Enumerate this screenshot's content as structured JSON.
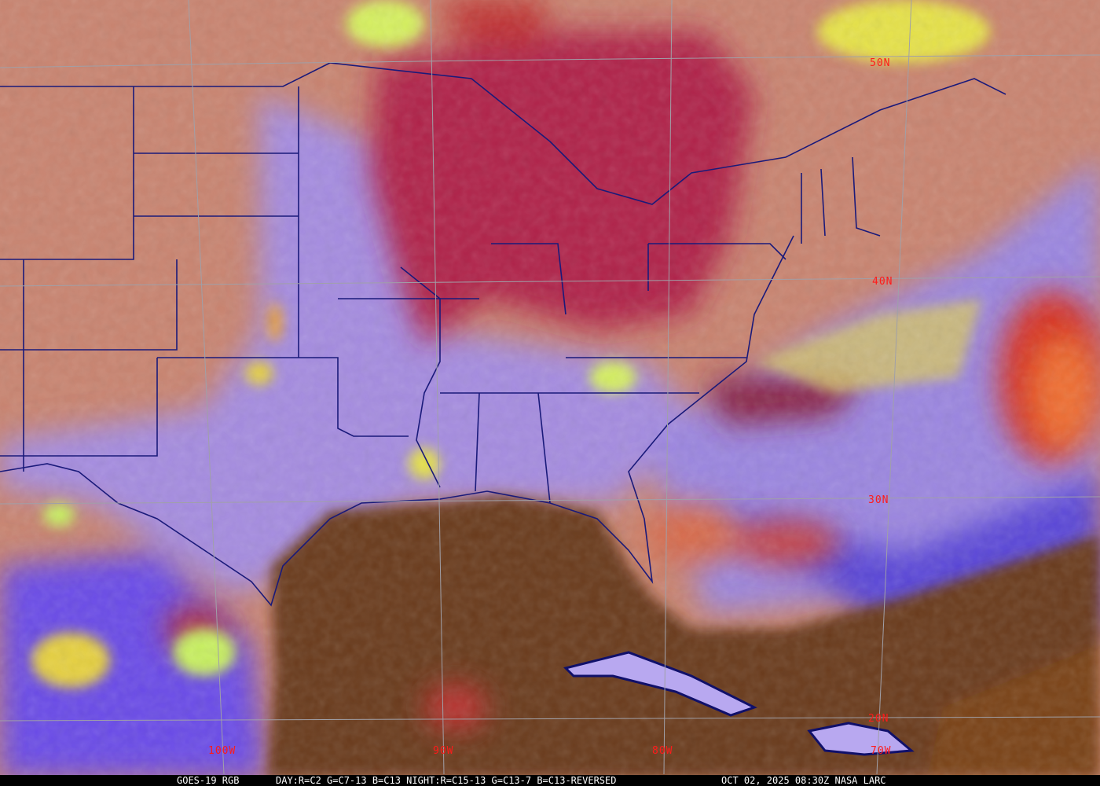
{
  "image": {
    "satellite": "GOES-19 RGB",
    "product": "DAY:R=C2 G=C7-13 B=C13 NIGHT:R=C15-13 G=C13-7 B=C13-REVERSED",
    "timestamp": "OCT 02, 2025 08:30Z NASA LARC"
  },
  "latitude_labels": [
    "50N",
    "40N",
    "30N",
    "20N"
  ],
  "longitude_labels": [
    "100W",
    "90W",
    "80W",
    "70W"
  ],
  "colors": {
    "grid": "#a0a0a8",
    "label": "#ff1a1a",
    "borders": "#1a1a7a",
    "land_clear": "#c98470",
    "ocean_night": "#6b3a1c",
    "low_cloud": "#a58ce0",
    "high_cloud": "#b0204a",
    "thin_cloud": "#e6e24a"
  }
}
